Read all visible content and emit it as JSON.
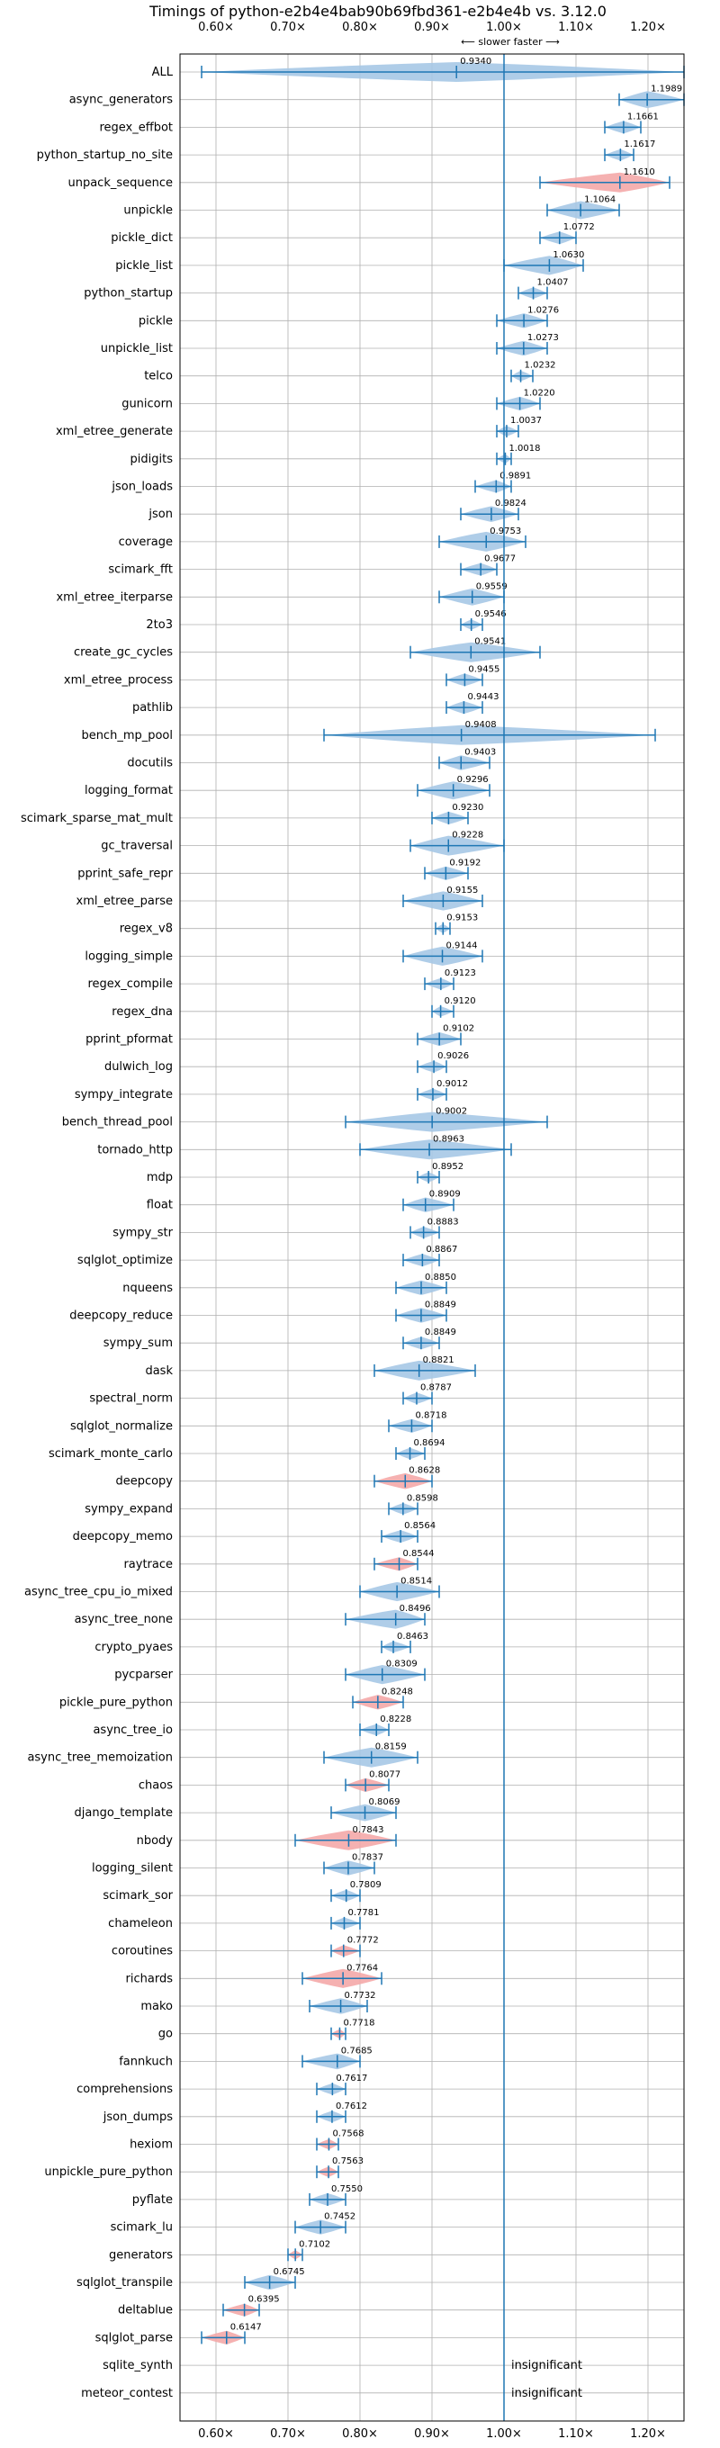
{
  "chart_data": {
    "type": "violin",
    "title": "Timings of python-e2b4e4bab90b69fbd361-e2b4e4b vs. 3.12.0",
    "direction_label": "⟵ slower   faster ⟶",
    "xlim": [
      0.55,
      1.25
    ],
    "xticks": [
      0.6,
      0.7,
      0.8,
      0.9,
      1.0,
      1.1,
      1.2
    ],
    "xtick_labels": [
      "0.60×",
      "0.70×",
      "0.80×",
      "0.90×",
      "1.00×",
      "1.10×",
      "1.20×"
    ],
    "reference_line": 1.0,
    "grid": true,
    "colors": {
      "faster": "#1f77b4",
      "faster_fill": "#a6c8e6",
      "slower_fill": "#f4a9a8",
      "grid": "#b0b0b0"
    },
    "insignificant_label": "insignificant",
    "rows": [
      {
        "name": "ALL",
        "value": 0.934,
        "label": "0.9340",
        "lo": 0.58,
        "hi": 1.25,
        "color": "blue"
      },
      {
        "name": "async_generators",
        "value": 1.1989,
        "label": "1.1989",
        "lo": 1.16,
        "hi": 1.25,
        "color": "blue"
      },
      {
        "name": "regex_effbot",
        "value": 1.1661,
        "label": "1.1661",
        "lo": 1.14,
        "hi": 1.19,
        "color": "blue"
      },
      {
        "name": "python_startup_no_site",
        "value": 1.1617,
        "label": "1.1617",
        "lo": 1.14,
        "hi": 1.18,
        "color": "blue"
      },
      {
        "name": "unpack_sequence",
        "value": 1.161,
        "label": "1.1610",
        "lo": 1.05,
        "hi": 1.23,
        "color": "red"
      },
      {
        "name": "unpickle",
        "value": 1.1064,
        "label": "1.1064",
        "lo": 1.06,
        "hi": 1.16,
        "color": "blue"
      },
      {
        "name": "pickle_dict",
        "value": 1.0772,
        "label": "1.0772",
        "lo": 1.05,
        "hi": 1.1,
        "color": "blue"
      },
      {
        "name": "pickle_list",
        "value": 1.063,
        "label": "1.0630",
        "lo": 1.0,
        "hi": 1.11,
        "color": "blue"
      },
      {
        "name": "python_startup",
        "value": 1.0407,
        "label": "1.0407",
        "lo": 1.02,
        "hi": 1.06,
        "color": "blue"
      },
      {
        "name": "pickle",
        "value": 1.0276,
        "label": "1.0276",
        "lo": 0.99,
        "hi": 1.06,
        "color": "blue"
      },
      {
        "name": "unpickle_list",
        "value": 1.0273,
        "label": "1.0273",
        "lo": 0.99,
        "hi": 1.06,
        "color": "blue"
      },
      {
        "name": "telco",
        "value": 1.0232,
        "label": "1.0232",
        "lo": 1.01,
        "hi": 1.04,
        "color": "blue"
      },
      {
        "name": "gunicorn",
        "value": 1.022,
        "label": "1.0220",
        "lo": 0.99,
        "hi": 1.05,
        "color": "blue"
      },
      {
        "name": "xml_etree_generate",
        "value": 1.0037,
        "label": "1.0037",
        "lo": 0.99,
        "hi": 1.02,
        "color": "blue"
      },
      {
        "name": "pidigits",
        "value": 1.0018,
        "label": "1.0018",
        "lo": 0.99,
        "hi": 1.01,
        "color": "blue"
      },
      {
        "name": "json_loads",
        "value": 0.9891,
        "label": "0.9891",
        "lo": 0.96,
        "hi": 1.01,
        "color": "blue"
      },
      {
        "name": "json",
        "value": 0.9824,
        "label": "0.9824",
        "lo": 0.94,
        "hi": 1.02,
        "color": "blue"
      },
      {
        "name": "coverage",
        "value": 0.9753,
        "label": "0.9753",
        "lo": 0.91,
        "hi": 1.03,
        "color": "blue"
      },
      {
        "name": "scimark_fft",
        "value": 0.9677,
        "label": "0.9677",
        "lo": 0.94,
        "hi": 0.99,
        "color": "blue"
      },
      {
        "name": "xml_etree_iterparse",
        "value": 0.9559,
        "label": "0.9559",
        "lo": 0.91,
        "hi": 1.0,
        "color": "blue"
      },
      {
        "name": "2to3",
        "value": 0.9546,
        "label": "0.9546",
        "lo": 0.94,
        "hi": 0.97,
        "color": "blue"
      },
      {
        "name": "create_gc_cycles",
        "value": 0.9541,
        "label": "0.9541",
        "lo": 0.87,
        "hi": 1.05,
        "color": "blue"
      },
      {
        "name": "xml_etree_process",
        "value": 0.9455,
        "label": "0.9455",
        "lo": 0.92,
        "hi": 0.97,
        "color": "blue"
      },
      {
        "name": "pathlib",
        "value": 0.9443,
        "label": "0.9443",
        "lo": 0.92,
        "hi": 0.97,
        "color": "blue"
      },
      {
        "name": "bench_mp_pool",
        "value": 0.9408,
        "label": "0.9408",
        "lo": 0.75,
        "hi": 1.21,
        "color": "blue"
      },
      {
        "name": "docutils",
        "value": 0.9403,
        "label": "0.9403",
        "lo": 0.91,
        "hi": 0.98,
        "color": "blue"
      },
      {
        "name": "logging_format",
        "value": 0.9296,
        "label": "0.9296",
        "lo": 0.88,
        "hi": 0.98,
        "color": "blue"
      },
      {
        "name": "scimark_sparse_mat_mult",
        "value": 0.923,
        "label": "0.9230",
        "lo": 0.9,
        "hi": 0.95,
        "color": "blue"
      },
      {
        "name": "gc_traversal",
        "value": 0.9228,
        "label": "0.9228",
        "lo": 0.87,
        "hi": 1.0,
        "color": "blue"
      },
      {
        "name": "pprint_safe_repr",
        "value": 0.9192,
        "label": "0.9192",
        "lo": 0.89,
        "hi": 0.95,
        "color": "blue"
      },
      {
        "name": "xml_etree_parse",
        "value": 0.9155,
        "label": "0.9155",
        "lo": 0.86,
        "hi": 0.97,
        "color": "blue"
      },
      {
        "name": "regex_v8",
        "value": 0.9153,
        "label": "0.9153",
        "lo": 0.905,
        "hi": 0.925,
        "color": "blue"
      },
      {
        "name": "logging_simple",
        "value": 0.9144,
        "label": "0.9144",
        "lo": 0.86,
        "hi": 0.97,
        "color": "blue"
      },
      {
        "name": "regex_compile",
        "value": 0.9123,
        "label": "0.9123",
        "lo": 0.89,
        "hi": 0.93,
        "color": "blue"
      },
      {
        "name": "regex_dna",
        "value": 0.912,
        "label": "0.9120",
        "lo": 0.9,
        "hi": 0.93,
        "color": "blue"
      },
      {
        "name": "pprint_pformat",
        "value": 0.9102,
        "label": "0.9102",
        "lo": 0.88,
        "hi": 0.94,
        "color": "blue"
      },
      {
        "name": "dulwich_log",
        "value": 0.9026,
        "label": "0.9026",
        "lo": 0.88,
        "hi": 0.92,
        "color": "blue"
      },
      {
        "name": "sympy_integrate",
        "value": 0.9012,
        "label": "0.9012",
        "lo": 0.88,
        "hi": 0.92,
        "color": "blue"
      },
      {
        "name": "bench_thread_pool",
        "value": 0.9002,
        "label": "0.9002",
        "lo": 0.78,
        "hi": 1.06,
        "color": "blue"
      },
      {
        "name": "tornado_http",
        "value": 0.8963,
        "label": "0.8963",
        "lo": 0.8,
        "hi": 1.01,
        "color": "blue"
      },
      {
        "name": "mdp",
        "value": 0.8952,
        "label": "0.8952",
        "lo": 0.88,
        "hi": 0.91,
        "color": "blue"
      },
      {
        "name": "float",
        "value": 0.8909,
        "label": "0.8909",
        "lo": 0.86,
        "hi": 0.93,
        "color": "blue"
      },
      {
        "name": "sympy_str",
        "value": 0.8883,
        "label": "0.8883",
        "lo": 0.87,
        "hi": 0.91,
        "color": "blue"
      },
      {
        "name": "sqlglot_optimize",
        "value": 0.8867,
        "label": "0.8867",
        "lo": 0.86,
        "hi": 0.91,
        "color": "blue"
      },
      {
        "name": "nqueens",
        "value": 0.885,
        "label": "0.8850",
        "lo": 0.85,
        "hi": 0.92,
        "color": "blue"
      },
      {
        "name": "deepcopy_reduce",
        "value": 0.8849,
        "label": "0.8849",
        "lo": 0.85,
        "hi": 0.92,
        "color": "blue"
      },
      {
        "name": "sympy_sum",
        "value": 0.8849,
        "label": "0.8849",
        "lo": 0.86,
        "hi": 0.91,
        "color": "blue"
      },
      {
        "name": "dask",
        "value": 0.8821,
        "label": "0.8821",
        "lo": 0.82,
        "hi": 0.96,
        "color": "blue"
      },
      {
        "name": "spectral_norm",
        "value": 0.8787,
        "label": "0.8787",
        "lo": 0.86,
        "hi": 0.9,
        "color": "blue"
      },
      {
        "name": "sqlglot_normalize",
        "value": 0.8718,
        "label": "0.8718",
        "lo": 0.84,
        "hi": 0.9,
        "color": "blue"
      },
      {
        "name": "scimark_monte_carlo",
        "value": 0.8694,
        "label": "0.8694",
        "lo": 0.85,
        "hi": 0.89,
        "color": "blue"
      },
      {
        "name": "deepcopy",
        "value": 0.8628,
        "label": "0.8628",
        "lo": 0.82,
        "hi": 0.9,
        "color": "red"
      },
      {
        "name": "sympy_expand",
        "value": 0.8598,
        "label": "0.8598",
        "lo": 0.84,
        "hi": 0.88,
        "color": "blue"
      },
      {
        "name": "deepcopy_memo",
        "value": 0.8564,
        "label": "0.8564",
        "lo": 0.83,
        "hi": 0.88,
        "color": "blue"
      },
      {
        "name": "raytrace",
        "value": 0.8544,
        "label": "0.8544",
        "lo": 0.82,
        "hi": 0.88,
        "color": "red"
      },
      {
        "name": "async_tree_cpu_io_mixed",
        "value": 0.8514,
        "label": "0.8514",
        "lo": 0.8,
        "hi": 0.91,
        "color": "blue"
      },
      {
        "name": "async_tree_none",
        "value": 0.8496,
        "label": "0.8496",
        "lo": 0.78,
        "hi": 0.89,
        "color": "blue"
      },
      {
        "name": "crypto_pyaes",
        "value": 0.8463,
        "label": "0.8463",
        "lo": 0.83,
        "hi": 0.87,
        "color": "blue"
      },
      {
        "name": "pycparser",
        "value": 0.8309,
        "label": "0.8309",
        "lo": 0.78,
        "hi": 0.89,
        "color": "blue"
      },
      {
        "name": "pickle_pure_python",
        "value": 0.8248,
        "label": "0.8248",
        "lo": 0.79,
        "hi": 0.86,
        "color": "red"
      },
      {
        "name": "async_tree_io",
        "value": 0.8228,
        "label": "0.8228",
        "lo": 0.8,
        "hi": 0.84,
        "color": "blue"
      },
      {
        "name": "async_tree_memoization",
        "value": 0.8159,
        "label": "0.8159",
        "lo": 0.75,
        "hi": 0.88,
        "color": "blue"
      },
      {
        "name": "chaos",
        "value": 0.8077,
        "label": "0.8077",
        "lo": 0.78,
        "hi": 0.84,
        "color": "red"
      },
      {
        "name": "django_template",
        "value": 0.8069,
        "label": "0.8069",
        "lo": 0.76,
        "hi": 0.85,
        "color": "blue"
      },
      {
        "name": "nbody",
        "value": 0.7843,
        "label": "0.7843",
        "lo": 0.71,
        "hi": 0.85,
        "color": "red"
      },
      {
        "name": "logging_silent",
        "value": 0.7837,
        "label": "0.7837",
        "lo": 0.75,
        "hi": 0.82,
        "color": "blue"
      },
      {
        "name": "scimark_sor",
        "value": 0.7809,
        "label": "0.7809",
        "lo": 0.76,
        "hi": 0.8,
        "color": "blue"
      },
      {
        "name": "chameleon",
        "value": 0.7781,
        "label": "0.7781",
        "lo": 0.76,
        "hi": 0.8,
        "color": "blue"
      },
      {
        "name": "coroutines",
        "value": 0.7772,
        "label": "0.7772",
        "lo": 0.76,
        "hi": 0.8,
        "color": "red"
      },
      {
        "name": "richards",
        "value": 0.7764,
        "label": "0.7764",
        "lo": 0.72,
        "hi": 0.83,
        "color": "red"
      },
      {
        "name": "mako",
        "value": 0.7732,
        "label": "0.7732",
        "lo": 0.73,
        "hi": 0.81,
        "color": "blue"
      },
      {
        "name": "go",
        "value": 0.7718,
        "label": "0.7718",
        "lo": 0.76,
        "hi": 0.78,
        "color": "red"
      },
      {
        "name": "fannkuch",
        "value": 0.7685,
        "label": "0.7685",
        "lo": 0.72,
        "hi": 0.8,
        "color": "blue"
      },
      {
        "name": "comprehensions",
        "value": 0.7617,
        "label": "0.7617",
        "lo": 0.74,
        "hi": 0.78,
        "color": "blue"
      },
      {
        "name": "json_dumps",
        "value": 0.7612,
        "label": "0.7612",
        "lo": 0.74,
        "hi": 0.78,
        "color": "blue"
      },
      {
        "name": "hexiom",
        "value": 0.7568,
        "label": "0.7568",
        "lo": 0.74,
        "hi": 0.77,
        "color": "red"
      },
      {
        "name": "unpickle_pure_python",
        "value": 0.7563,
        "label": "0.7563",
        "lo": 0.74,
        "hi": 0.77,
        "color": "red"
      },
      {
        "name": "pyflate",
        "value": 0.755,
        "label": "0.7550",
        "lo": 0.73,
        "hi": 0.78,
        "color": "blue"
      },
      {
        "name": "scimark_lu",
        "value": 0.7452,
        "label": "0.7452",
        "lo": 0.71,
        "hi": 0.78,
        "color": "blue"
      },
      {
        "name": "generators",
        "value": 0.7102,
        "label": "0.7102",
        "lo": 0.7,
        "hi": 0.72,
        "color": "red"
      },
      {
        "name": "sqlglot_transpile",
        "value": 0.6745,
        "label": "0.6745",
        "lo": 0.64,
        "hi": 0.71,
        "color": "blue"
      },
      {
        "name": "deltablue",
        "value": 0.6395,
        "label": "0.6395",
        "lo": 0.61,
        "hi": 0.66,
        "color": "red"
      },
      {
        "name": "sqlglot_parse",
        "value": 0.6147,
        "label": "0.6147",
        "lo": 0.58,
        "hi": 0.64,
        "color": "red"
      },
      {
        "name": "sqlite_synth",
        "value": null,
        "label": "insignificant",
        "lo": null,
        "hi": null,
        "color": "none"
      },
      {
        "name": "meteor_contest",
        "value": null,
        "label": "insignificant",
        "lo": null,
        "hi": null,
        "color": "none"
      }
    ]
  }
}
